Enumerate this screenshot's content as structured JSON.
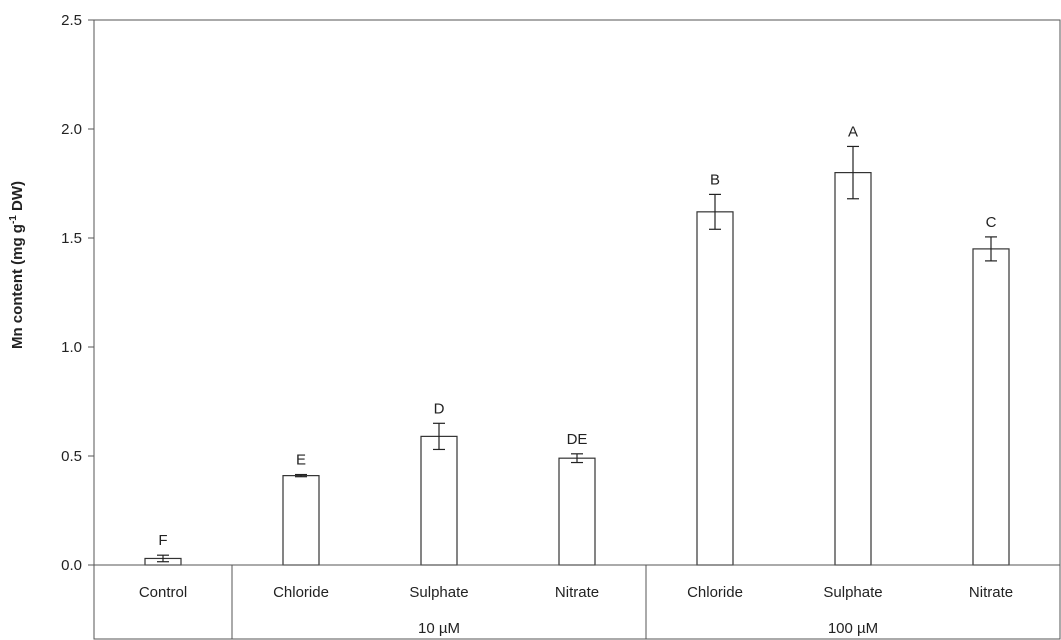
{
  "chart_data": {
    "type": "bar",
    "ylabel_main": "Mn content (mg g",
    "ylabel_sup": "-1",
    "ylabel_tail": " DW)",
    "ylim": [
      0,
      2.5
    ],
    "yticks": [
      "0.0",
      "0.5",
      "1.0",
      "1.5",
      "2.0",
      "2.5"
    ],
    "categories": [
      "Control",
      "Chloride",
      "Sulphate",
      "Nitrate",
      "Chloride",
      "Sulphate",
      "Nitrate"
    ],
    "groups": [
      {
        "label": "10 µM",
        "categories": [
          1,
          2,
          3
        ]
      },
      {
        "label": "100 µM",
        "categories": [
          4,
          5,
          6
        ]
      }
    ],
    "values": [
      0.03,
      0.41,
      0.59,
      0.49,
      1.62,
      1.8,
      1.45
    ],
    "errors": [
      0.015,
      0.005,
      0.06,
      0.02,
      0.08,
      0.12,
      0.055
    ],
    "significance": [
      "F",
      "E",
      "D",
      "DE",
      "B",
      "A",
      "C"
    ],
    "bar_color": "#ffffff",
    "bar_edge_color": "#333333",
    "grid": false
  }
}
